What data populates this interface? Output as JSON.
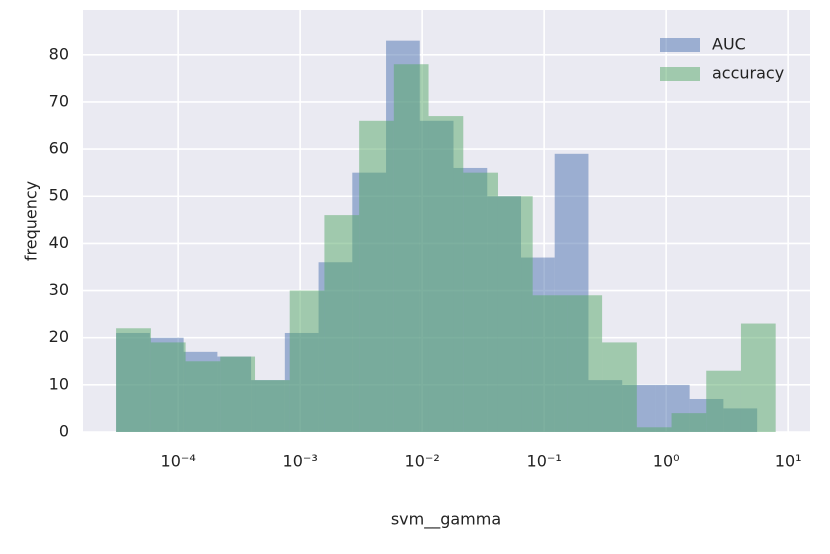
{
  "chart_data": {
    "type": "histogram",
    "xlabel": "svm__gamma",
    "ylabel": "frequency",
    "xscale": "log",
    "grid": true,
    "legend": "upper right",
    "xlim": [
      1.66e-05,
      15.1
    ],
    "ylim": [
      0,
      89.5
    ],
    "xticks": [
      {
        "value": 0.0001,
        "label": "10⁻⁴"
      },
      {
        "value": 0.001,
        "label": "10⁻³"
      },
      {
        "value": 0.01,
        "label": "10⁻²"
      },
      {
        "value": 0.1,
        "label": "10⁻¹"
      },
      {
        "value": 1,
        "label": "10⁰"
      },
      {
        "value": 10,
        "label": "10¹"
      }
    ],
    "yticks": [
      0,
      10,
      20,
      30,
      40,
      50,
      60,
      70,
      80
    ],
    "series": [
      {
        "name": "AUC",
        "color": "#4c72b0",
        "bins": [
          3.1e-05,
          5.87e-05,
          0.0001109,
          0.0002097,
          0.0003963,
          0.000749,
          0.001416,
          0.002676,
          0.00506,
          0.00956,
          0.01807,
          0.03416,
          0.0646,
          0.122,
          0.2307,
          0.436,
          0.824,
          1.557,
          2.944,
          5.567
        ],
        "values": [
          21,
          20,
          17,
          16,
          11,
          21,
          36,
          55,
          83,
          66,
          56,
          50,
          37,
          59,
          11,
          10,
          10,
          7,
          5
        ]
      },
      {
        "name": "accuracy",
        "color": "#55a868",
        "bins": [
          3.1e-05,
          5.98e-05,
          0.0001151,
          0.0002215,
          0.0004266,
          0.000821,
          0.001581,
          0.003045,
          0.00586,
          0.01128,
          0.02173,
          0.04183,
          0.0805,
          0.155,
          0.2985,
          0.575,
          1.107,
          2.131,
          4.102,
          7.9
        ],
        "values": [
          22,
          19,
          15,
          16,
          11,
          30,
          46,
          66,
          78,
          67,
          55,
          50,
          29,
          29,
          19,
          1,
          4,
          13,
          23
        ]
      }
    ]
  }
}
